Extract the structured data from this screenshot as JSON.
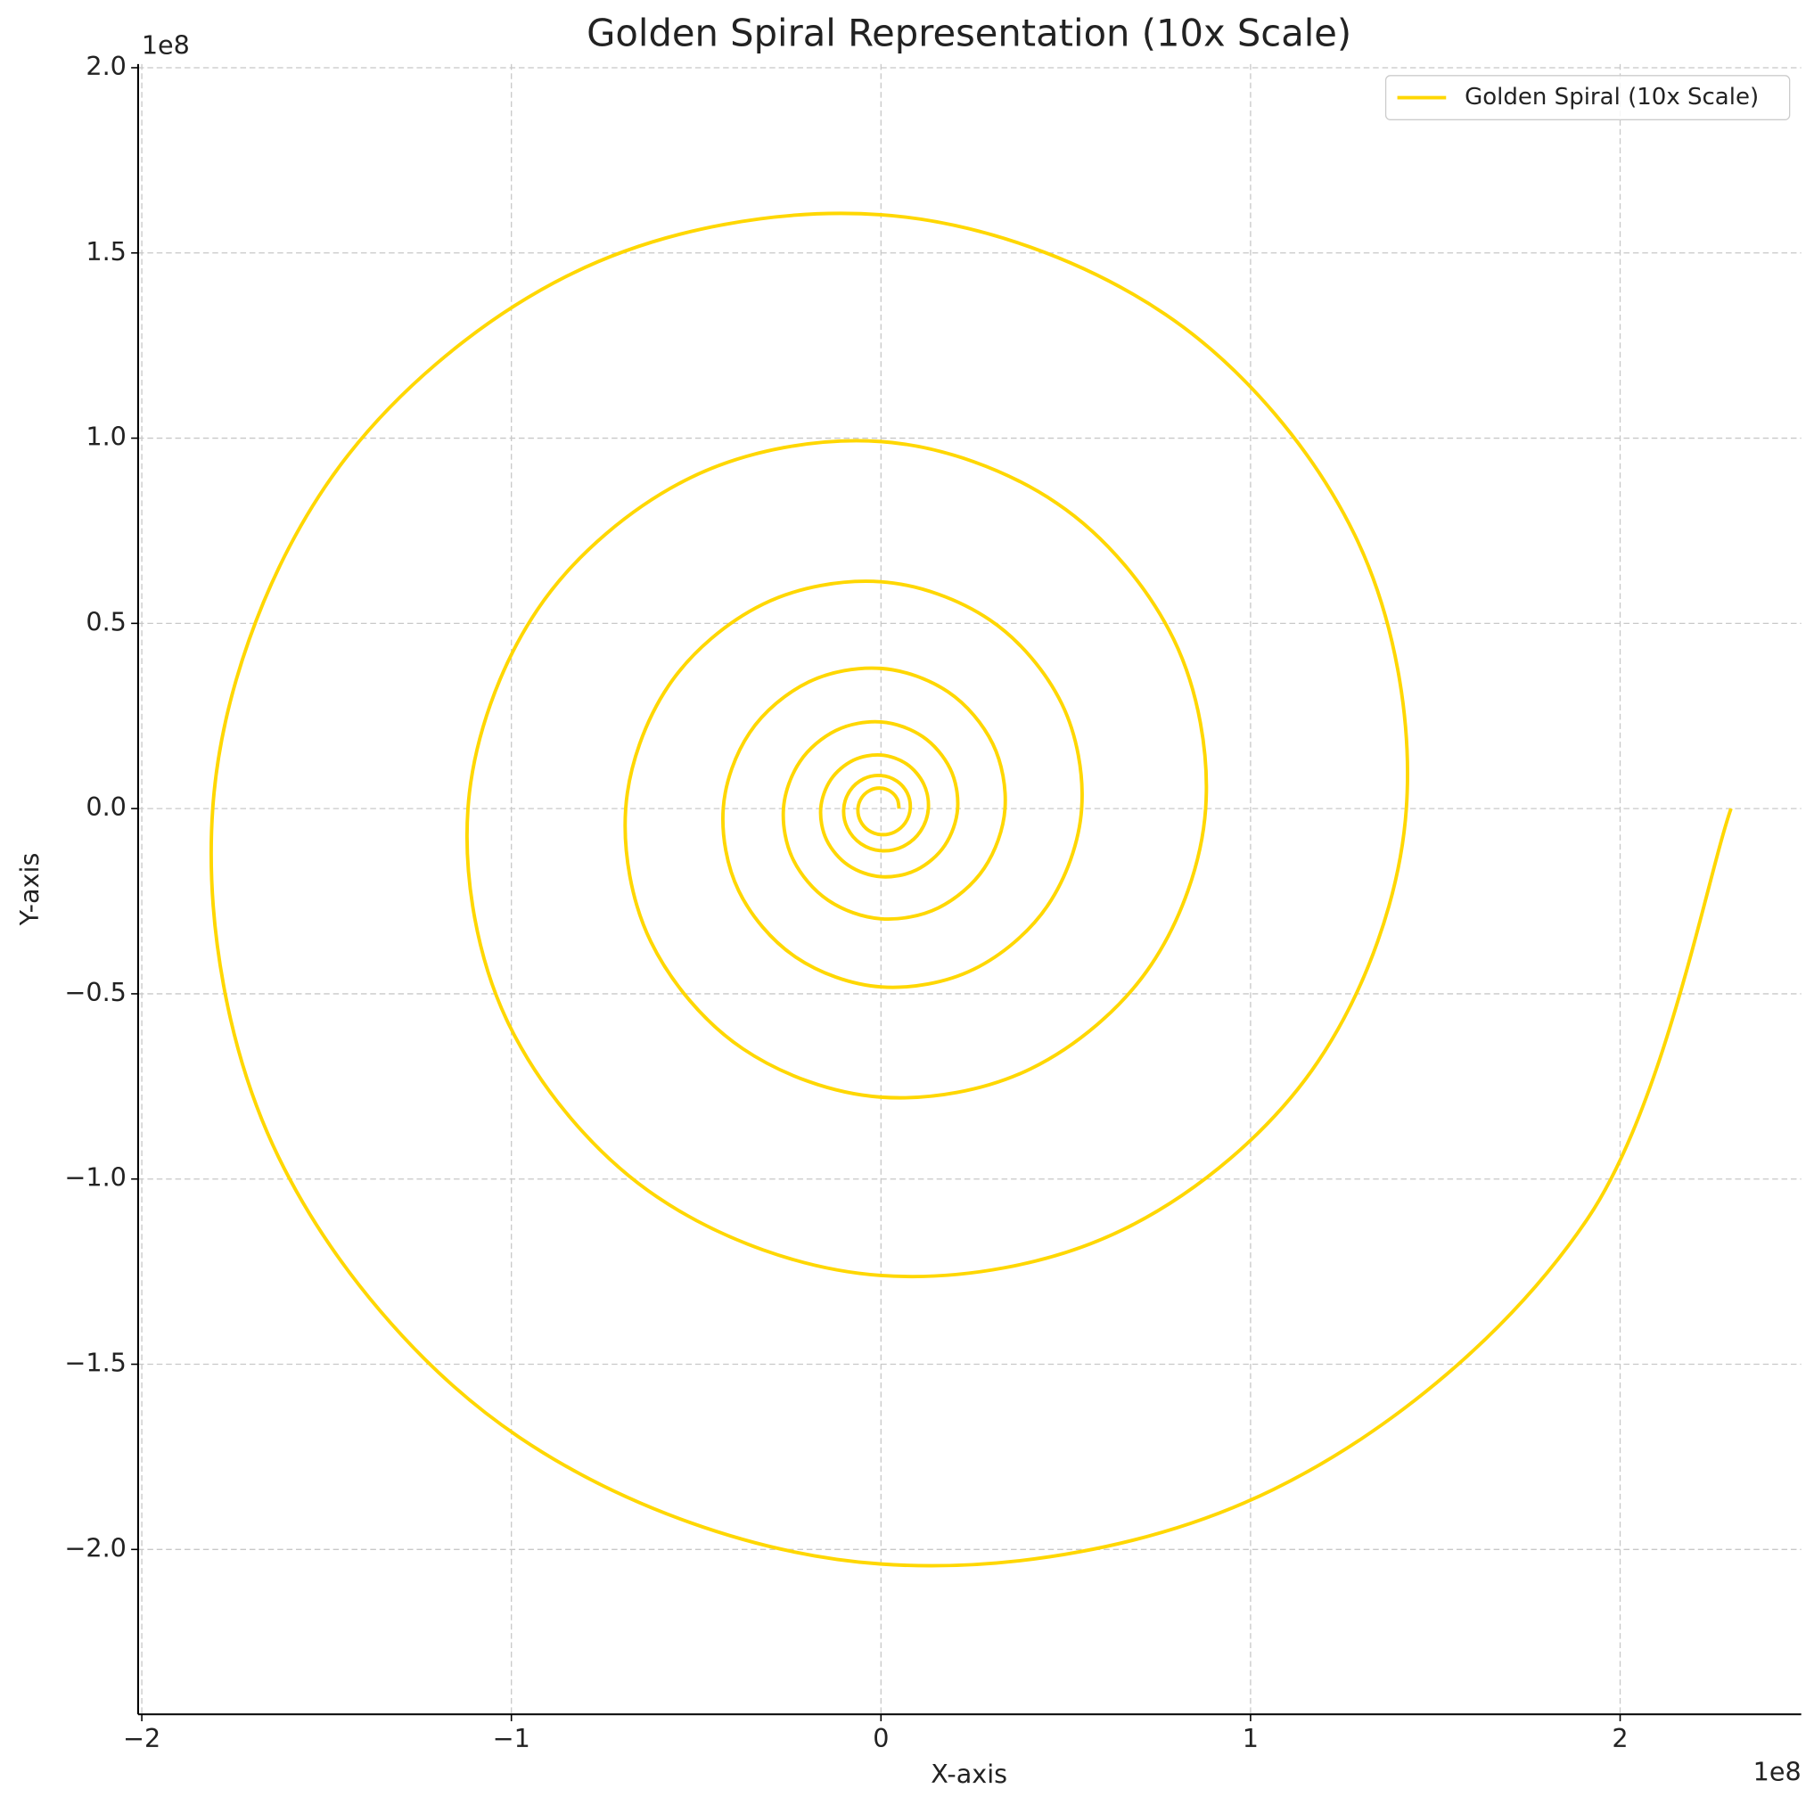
{
  "chart_data": {
    "type": "line",
    "title": "Golden Spiral Representation (10x Scale)",
    "xlabel": "X-axis",
    "ylabel": "Y-axis",
    "x_offset_label": "1e8",
    "y_offset_label": "1e8",
    "xlim": [
      -2.01,
      2.49
    ],
    "ylim": [
      -2.445,
      2.01
    ],
    "xticks": [
      {
        "value": -2,
        "label": "−2"
      },
      {
        "value": -1,
        "label": "−1"
      },
      0,
      1,
      2
    ],
    "yticks": [
      {
        "value": -2.0,
        "label": "−2.0"
      },
      {
        "value": -1.5,
        "label": "−1.5"
      },
      {
        "value": -1.0,
        "label": "−1.0"
      },
      {
        "value": -0.5,
        "label": "−0.5"
      },
      {
        "value": 0.0,
        "label": "0.0"
      },
      {
        "value": 0.5,
        "label": "0.5"
      },
      {
        "value": 1.0,
        "label": "1.0"
      },
      {
        "value": 1.5,
        "label": "1.5"
      },
      {
        "value": 2.0,
        "label": "2.0"
      }
    ],
    "grid": true,
    "legend": "upper right",
    "x": [
      0.049,
      0.0442,
      0.0265,
      0,
      -0.0288,
      -0.0518,
      -0.0623,
      -0.0561,
      -0.0338,
      0,
      0.0366,
      0.0659,
      0.0792,
      0.0714,
      0.0429,
      0,
      -0.0465,
      -0.0838,
      -0.1008,
      -0.0908,
      -0.0546,
      0,
      0.0592,
      0.1066,
      0.1282,
      0.1155,
      0.0695,
      0,
      -0.0753,
      -0.1356,
      -0.163,
      -0.147,
      -0.0884,
      0,
      0.0957,
      0.1725,
      0.2074,
      0.187,
      0.1124,
      0,
      -0.1218,
      -0.2194,
      -0.2638,
      -0.2378,
      -0.1429,
      0,
      0.1549,
      0.2792,
      0.3356,
      0.3025,
      0.1818,
      0,
      -0.197,
      -0.3552,
      -0.4268,
      -0.3848,
      -0.2313,
      0,
      0.2506,
      0.4517,
      0.543,
      0.4894,
      0.2942,
      0,
      -0.3187,
      -0.5746,
      -0.6907,
      -0.6226,
      -0.3742,
      0,
      0.4054,
      0.7309,
      0.8785,
      0.7919,
      0.4759,
      0,
      -0.5157,
      -0.9297,
      -1.1175,
      -1.0073,
      -0.6054,
      0,
      0.656,
      1.1826,
      1.4215,
      1.2813,
      0.7701,
      0,
      -0.8344,
      -1.5043,
      -1.8081,
      -1.6299,
      -0.9796,
      0,
      1.0614,
      1.9135,
      2.3
    ],
    "series": [
      {
        "name": "Golden Spiral (10x Scale)",
        "color": "#FFD700",
        "values": [
          0,
          0.0255,
          0.0459,
          0.0552,
          0.0498,
          0.0299,
          0,
          -0.0324,
          -0.0585,
          -0.0702,
          -0.0633,
          -0.0381,
          0,
          0.0413,
          0.0743,
          0.0893,
          0.0805,
          0.0484,
          0,
          -0.0525,
          -0.0946,
          -0.1137,
          -0.1024,
          -0.0616,
          0,
          0.0667,
          0.1203,
          0.1446,
          0.1303,
          0.0783,
          0,
          -0.0849,
          -0.153,
          -0.1839,
          -0.1658,
          -0.0996,
          0,
          0.108,
          0.1946,
          0.2339,
          0.2109,
          0.1267,
          0,
          -0.1373,
          -0.2475,
          -0.2975,
          -0.2682,
          -0.1612,
          0,
          0.1747,
          0.3149,
          0.3784,
          0.3411,
          0.2051,
          0,
          -0.2222,
          -0.4005,
          -0.4814,
          -0.434,
          -0.2608,
          0,
          0.2826,
          0.5095,
          0.6123,
          0.552,
          0.3318,
          0,
          -0.3595,
          -0.648,
          -0.779,
          -0.7022,
          -0.422,
          0,
          0.4572,
          0.8243,
          0.9908,
          0.8931,
          0.5368,
          0,
          -0.5816,
          -1.0486,
          -1.2604,
          -1.1361,
          -0.6828,
          0,
          0.7398,
          1.3337,
          1.6031,
          1.4451,
          0.8685,
          0,
          -0.9411,
          -1.6966,
          -2.0393,
          -1.8383,
          -1.1048,
          0
        ]
      }
    ]
  }
}
